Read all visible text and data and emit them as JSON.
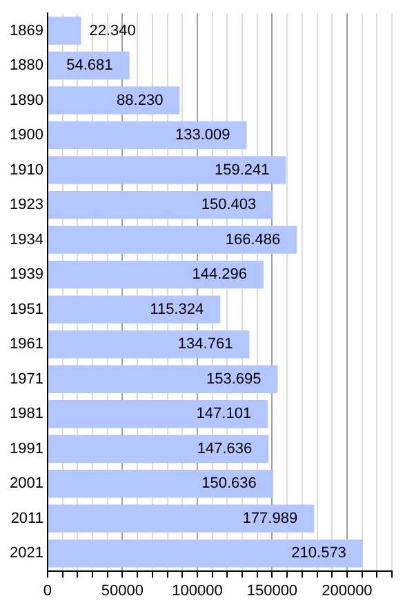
{
  "chart_data": {
    "type": "bar",
    "orientation": "horizontal",
    "categories": [
      "1869",
      "1880",
      "1890",
      "1900",
      "1910",
      "1923",
      "1934",
      "1939",
      "1951",
      "1961",
      "1971",
      "1981",
      "1991",
      "2001",
      "2011",
      "2021"
    ],
    "values": [
      22340,
      54681,
      88230,
      133009,
      159241,
      150403,
      166486,
      144296,
      115324,
      134761,
      153695,
      147101,
      147636,
      150636,
      177989,
      210573
    ],
    "value_labels": [
      "22.340",
      "54.681",
      "88.230",
      "133.009",
      "159.241",
      "150.403",
      "166.486",
      "144.296",
      "115.324",
      "134.761",
      "153.695",
      "147.101",
      "147.636",
      "150.636",
      "177.989",
      "210.573"
    ],
    "color": "#b3c6ff",
    "xlim": [
      0,
      230000
    ],
    "xticks": [
      0,
      {
        "value": 10000,
        "label": null
      },
      {
        "value": 20000,
        "label": null
      },
      {
        "value": 30000,
        "label": null
      },
      {
        "value": 40000,
        "label": null
      },
      50000,
      {
        "value": 60000,
        "label": null
      },
      {
        "value": 70000,
        "label": null
      },
      {
        "value": 80000,
        "label": null
      },
      {
        "value": 90000,
        "label": null
      },
      100000,
      {
        "value": 110000,
        "label": null
      },
      {
        "value": 120000,
        "label": null
      },
      {
        "value": 130000,
        "label": null
      },
      {
        "value": 140000,
        "label": null
      },
      150000,
      {
        "value": 160000,
        "label": null
      },
      {
        "value": 170000,
        "label": null
      },
      {
        "value": 180000,
        "label": null
      },
      {
        "value": 190000,
        "label": null
      },
      200000,
      {
        "value": 210000,
        "label": null
      },
      {
        "value": 220000,
        "label": null
      },
      {
        "value": 230000,
        "label": null
      }
    ],
    "grid": "x",
    "legend": false
  }
}
